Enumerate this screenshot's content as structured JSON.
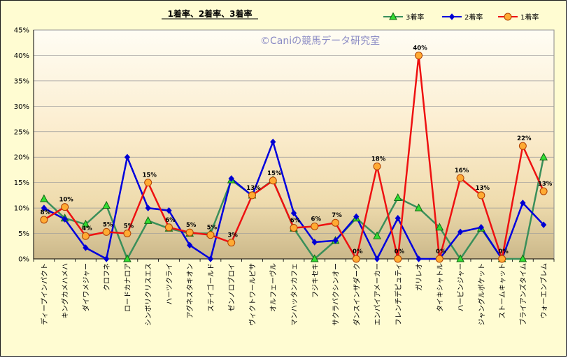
{
  "chart_data": {
    "type": "line",
    "title": "1着率、2着率、3着率",
    "watermark": "©Caniの競馬データ研究室",
    "ylim": [
      0,
      45
    ],
    "y_ticks": [
      "0%",
      "5%",
      "10%",
      "15%",
      "20%",
      "25%",
      "30%",
      "35%",
      "40%",
      "45%"
    ],
    "legend_position": "top-right",
    "categories": [
      "ディープインパクト",
      "キングカメハメハ",
      "ダイワメジャー",
      "クロフネ",
      "ロードカナロア",
      "シンボリクリスエス",
      "ハーツクライ",
      "アグネスタキオン",
      "ステイゴールド",
      "ゼンノロブロイ",
      "ヴィクトワールピサ",
      "オルフェーヴル",
      "マンハッタンカフェ",
      "フジキセキ",
      "サクラバクシンオー",
      "ダンスインザダーク",
      "エンパイアメーカー",
      "フレンチデピュティ",
      "ガリレオ",
      "タイキシャトル",
      "ハービンジャー",
      "ジャングルポケット",
      "ストームキャット",
      "ブライアンズタイム",
      "ウォーエンブレム"
    ],
    "series": [
      {
        "name": "3着率",
        "color": "#3a8f5a",
        "marker": "triangle",
        "marker_fill": "#33dd33",
        "values": [
          11.8,
          8.0,
          6.8,
          10.5,
          0,
          7.5,
          6.0,
          5.0,
          5.0,
          15.5,
          12.5,
          15.5,
          6.0,
          0,
          3.6,
          8.0,
          4.5,
          12.0,
          10.0,
          6.2,
          0,
          6.0,
          0,
          0,
          20.0
        ]
      },
      {
        "name": "2着率",
        "color": "#0000dd",
        "marker": "diamond",
        "marker_fill": "#0000cc",
        "values": [
          10.0,
          7.8,
          2.2,
          0,
          20.0,
          10.0,
          9.5,
          2.7,
          0,
          15.8,
          12.4,
          23.0,
          9.0,
          3.3,
          3.6,
          8.3,
          0,
          8.0,
          0,
          0,
          5.3,
          6.2,
          0,
          11.0,
          6.7
        ]
      },
      {
        "name": "1着率",
        "color": "#ee1111",
        "marker": "circle",
        "marker_fill": "#ffaa33",
        "values": [
          7.7,
          10.2,
          4.5,
          5.3,
          5.0,
          15.0,
          6.2,
          5.2,
          4.7,
          3.2,
          12.5,
          15.4,
          6.1,
          6.4,
          7.1,
          0,
          18.2,
          0,
          40.0,
          0,
          15.9,
          12.5,
          0,
          22.2,
          13.3
        ]
      }
    ],
    "data_labels": [
      "8%",
      "10%",
      "4%",
      "5%",
      "5%",
      "15%",
      "6%",
      "5%",
      "5%",
      "3%",
      "13%",
      "15%",
      "6%",
      "6%",
      "7%",
      "0%",
      "18%",
      "0%",
      "40%",
      "0%",
      "16%",
      "13%",
      "0%",
      "22%",
      "13%"
    ]
  }
}
